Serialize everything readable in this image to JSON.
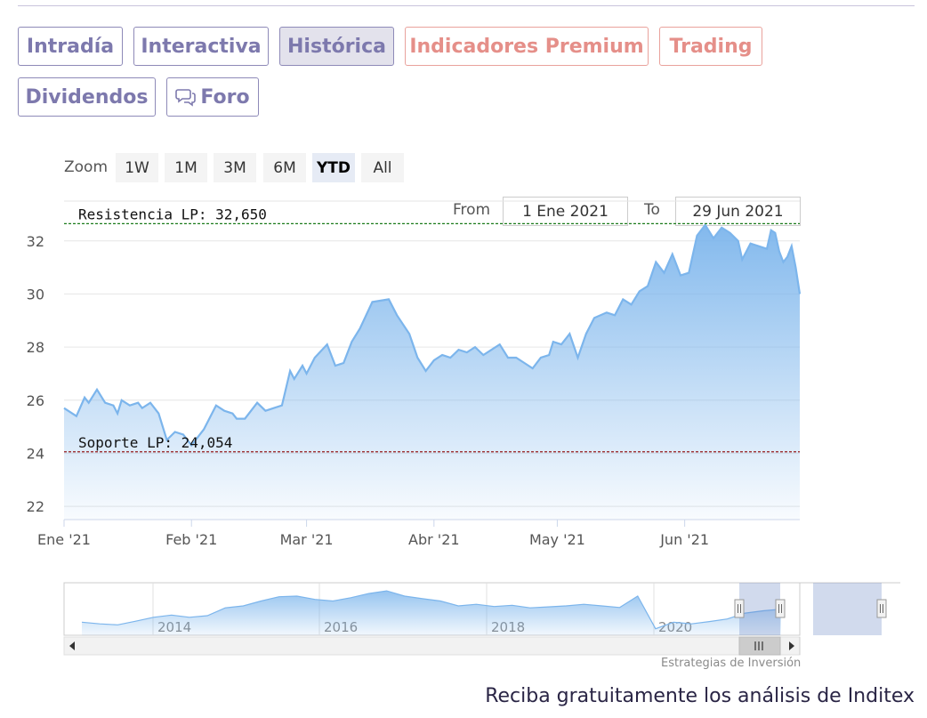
{
  "tabs": [
    {
      "label": "Intradía"
    },
    {
      "label": "Interactiva"
    },
    {
      "label": "Histórica"
    },
    {
      "label": "Indicadores Premium"
    },
    {
      "label": "Trading"
    },
    {
      "label": "Dividendos"
    },
    {
      "label": "Foro"
    }
  ],
  "zoom": {
    "label": "Zoom",
    "buttons": [
      "1W",
      "1M",
      "3M",
      "6M",
      "YTD",
      "All"
    ],
    "active": "YTD"
  },
  "range": {
    "from_label": "From",
    "from_value": "1 Ene 2021",
    "to_label": "To",
    "to_value": "29 Jun 2021"
  },
  "colors": {
    "line": "#7cb5ec",
    "resistance": "#1a7a1a",
    "support": "#8b0000",
    "tab_text": "#7d79ad",
    "premium_text": "#e58f89"
  },
  "chart_data": {
    "type": "area",
    "ylim": [
      21.5,
      33.5
    ],
    "yticks": [
      22,
      24,
      26,
      28,
      30,
      32
    ],
    "xlim": [
      "2021-01-01",
      "2021-06-29"
    ],
    "xticks": [
      {
        "date": "2021-01-01",
        "label": "Ene '21"
      },
      {
        "date": "2021-02-01",
        "label": "Feb '21"
      },
      {
        "date": "2021-03-01",
        "label": "Mar '21"
      },
      {
        "date": "2021-04-01",
        "label": "Abr '21"
      },
      {
        "date": "2021-05-01",
        "label": "May '21"
      },
      {
        "date": "2021-06-01",
        "label": "Jun '21"
      }
    ],
    "series": [
      {
        "values": [
          [
            "2021-01-01",
            25.7
          ],
          [
            "2021-01-04",
            25.4
          ],
          [
            "2021-01-06",
            26.1
          ],
          [
            "2021-01-07",
            25.9
          ],
          [
            "2021-01-09",
            26.4
          ],
          [
            "2021-01-11",
            25.9
          ],
          [
            "2021-01-13",
            25.8
          ],
          [
            "2021-01-14",
            25.5
          ],
          [
            "2021-01-15",
            26.0
          ],
          [
            "2021-01-17",
            25.8
          ],
          [
            "2021-01-19",
            25.9
          ],
          [
            "2021-01-20",
            25.7
          ],
          [
            "2021-01-22",
            25.9
          ],
          [
            "2021-01-24",
            25.5
          ],
          [
            "2021-01-26",
            24.5
          ],
          [
            "2021-01-28",
            24.8
          ],
          [
            "2021-01-30",
            24.7
          ],
          [
            "2021-02-01",
            24.3
          ],
          [
            "2021-02-04",
            24.9
          ],
          [
            "2021-02-07",
            25.8
          ],
          [
            "2021-02-09",
            25.6
          ],
          [
            "2021-02-11",
            25.5
          ],
          [
            "2021-02-12",
            25.3
          ],
          [
            "2021-02-14",
            25.3
          ],
          [
            "2021-02-17",
            25.9
          ],
          [
            "2021-02-19",
            25.6
          ],
          [
            "2021-02-21",
            25.7
          ],
          [
            "2021-02-23",
            25.8
          ],
          [
            "2021-02-25",
            27.1
          ],
          [
            "2021-02-26",
            26.8
          ],
          [
            "2021-02-28",
            27.3
          ],
          [
            "2021-03-01",
            27.0
          ],
          [
            "2021-03-03",
            27.6
          ],
          [
            "2021-03-06",
            28.1
          ],
          [
            "2021-03-08",
            27.3
          ],
          [
            "2021-03-10",
            27.4
          ],
          [
            "2021-03-12",
            28.2
          ],
          [
            "2021-03-14",
            28.7
          ],
          [
            "2021-03-17",
            29.7
          ],
          [
            "2021-03-21",
            29.8
          ],
          [
            "2021-03-23",
            29.2
          ],
          [
            "2021-03-26",
            28.5
          ],
          [
            "2021-03-28",
            27.6
          ],
          [
            "2021-03-30",
            27.1
          ],
          [
            "2021-04-01",
            27.5
          ],
          [
            "2021-04-03",
            27.7
          ],
          [
            "2021-04-05",
            27.6
          ],
          [
            "2021-04-07",
            27.9
          ],
          [
            "2021-04-09",
            27.8
          ],
          [
            "2021-04-11",
            28.0
          ],
          [
            "2021-04-13",
            27.7
          ],
          [
            "2021-04-15",
            27.9
          ],
          [
            "2021-04-17",
            28.1
          ],
          [
            "2021-04-19",
            27.6
          ],
          [
            "2021-04-21",
            27.6
          ],
          [
            "2021-04-23",
            27.4
          ],
          [
            "2021-04-25",
            27.2
          ],
          [
            "2021-04-27",
            27.6
          ],
          [
            "2021-04-29",
            27.7
          ],
          [
            "2021-04-30",
            28.2
          ],
          [
            "2021-05-02",
            28.1
          ],
          [
            "2021-05-04",
            28.5
          ],
          [
            "2021-05-06",
            27.6
          ],
          [
            "2021-05-08",
            28.5
          ],
          [
            "2021-05-10",
            29.1
          ],
          [
            "2021-05-13",
            29.3
          ],
          [
            "2021-05-15",
            29.2
          ],
          [
            "2021-05-17",
            29.8
          ],
          [
            "2021-05-19",
            29.6
          ],
          [
            "2021-05-21",
            30.1
          ],
          [
            "2021-05-23",
            30.3
          ],
          [
            "2021-05-25",
            31.2
          ],
          [
            "2021-05-27",
            30.8
          ],
          [
            "2021-05-29",
            31.5
          ],
          [
            "2021-05-31",
            30.7
          ],
          [
            "2021-06-02",
            30.8
          ],
          [
            "2021-06-04",
            32.2
          ],
          [
            "2021-06-06",
            32.6
          ],
          [
            "2021-06-08",
            32.1
          ],
          [
            "2021-06-10",
            32.5
          ],
          [
            "2021-06-12",
            32.3
          ],
          [
            "2021-06-14",
            32.0
          ],
          [
            "2021-06-15",
            31.3
          ],
          [
            "2021-06-17",
            31.9
          ],
          [
            "2021-06-19",
            31.8
          ],
          [
            "2021-06-21",
            31.7
          ],
          [
            "2021-06-22",
            32.4
          ],
          [
            "2021-06-23",
            32.3
          ],
          [
            "2021-06-24",
            31.6
          ],
          [
            "2021-06-25",
            31.2
          ],
          [
            "2021-06-26",
            31.4
          ],
          [
            "2021-06-27",
            31.8
          ],
          [
            "2021-06-28",
            31.0
          ],
          [
            "2021-06-29",
            30.0
          ]
        ]
      }
    ],
    "annotations": [
      {
        "label": "Resistencia LP: 32,650",
        "y": 32.65,
        "style": "dashed"
      },
      {
        "label": "Soporte LP: 24,054",
        "y": 24.054,
        "style": "dashed"
      }
    ],
    "grid": true,
    "legend": "none"
  },
  "navigator": {
    "year_labels": [
      "2014",
      "2016",
      "2018",
      "2020"
    ],
    "values": [
      14.0,
      13.5,
      13.2,
      14.3,
      15.5,
      16.2,
      15.5,
      16.0,
      18.4,
      19.0,
      20.5,
      21.8,
      22.0,
      21.0,
      20.5,
      21.5,
      22.8,
      23.6,
      22.0,
      21.2,
      20.5,
      19.0,
      19.5,
      18.8,
      19.2,
      18.4,
      18.7,
      19.0,
      19.5,
      19.0,
      18.5,
      22.0,
      12.0,
      14.0,
      13.5,
      14.2,
      15.0,
      16.8,
      17.5,
      18.0
    ]
  },
  "scrollbar": {
    "thumb_icon": "grip-icon"
  },
  "credit": "Estrategias de Inversión",
  "cta": "Reciba gratuitamente los análisis de Inditex"
}
